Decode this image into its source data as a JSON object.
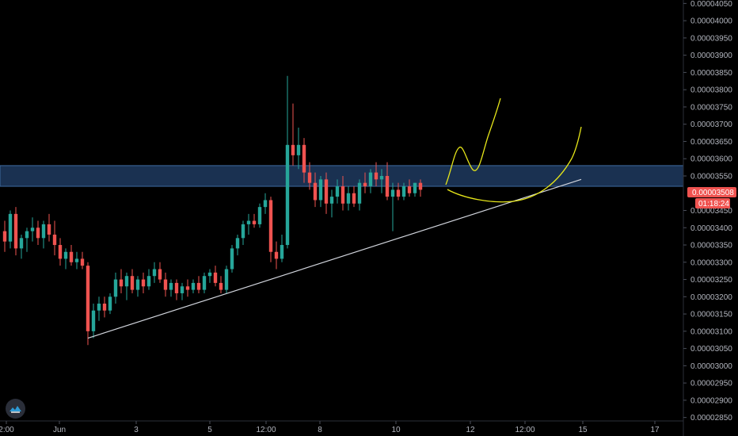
{
  "chart_data": {
    "type": "candlestick",
    "title": "",
    "xlabel": "",
    "ylabel": "",
    "ylim": [
      2.84e-05,
      4.06e-05
    ],
    "y_ticks": [
      "0.00004050",
      "0.00004000",
      "0.00003950",
      "0.00003900",
      "0.00003850",
      "0.00003800",
      "0.00003750",
      "0.00003700",
      "0.00003650",
      "0.00003600",
      "0.00003550",
      "0.00003450",
      "0.00003400",
      "0.00003350",
      "0.00003300",
      "0.00003250",
      "0.00003200",
      "0.00003150",
      "0.00003100",
      "0.00003050",
      "0.00003000",
      "0.00002950",
      "0.00002900",
      "0.00002850"
    ],
    "x_ticks": [
      "2:00",
      "Jun",
      "3",
      "5",
      "12:00",
      "8",
      "10",
      "12",
      "12:00",
      "15",
      "17"
    ],
    "current_price": "0.00003508",
    "countdown": "01:18:24",
    "resistance_zone": [
      3.52e-05,
      3.58e-05
    ],
    "trendline": {
      "start": [
        0,
        3.08e-05
      ],
      "end": [
        1,
        3.54e-05
      ]
    },
    "colors": {
      "up": "#26a69a",
      "down": "#ef5350",
      "zone": "#1e3a5f",
      "drawing": "#e6e619",
      "trendline": "#d1d4dc"
    },
    "series": [
      {
        "o": 3.39e-05,
        "h": 3.42e-05,
        "l": 3.33e-05,
        "c": 3.36e-05
      },
      {
        "o": 3.36e-05,
        "h": 3.45e-05,
        "l": 3.34e-05,
        "c": 3.44e-05
      },
      {
        "o": 3.44e-05,
        "h": 3.46e-05,
        "l": 3.32e-05,
        "c": 3.34e-05
      },
      {
        "o": 3.34e-05,
        "h": 3.38e-05,
        "l": 3.31e-05,
        "c": 3.37e-05
      },
      {
        "o": 3.37e-05,
        "h": 3.4e-05,
        "l": 3.33e-05,
        "c": 3.39e-05
      },
      {
        "o": 3.39e-05,
        "h": 3.43e-05,
        "l": 3.36e-05,
        "c": 3.4e-05
      },
      {
        "o": 3.4e-05,
        "h": 3.42e-05,
        "l": 3.35e-05,
        "c": 3.37e-05
      },
      {
        "o": 3.37e-05,
        "h": 3.42e-05,
        "l": 3.34e-05,
        "c": 3.41e-05
      },
      {
        "o": 3.41e-05,
        "h": 3.44e-05,
        "l": 3.36e-05,
        "c": 3.38e-05
      },
      {
        "o": 3.38e-05,
        "h": 3.42e-05,
        "l": 3.32e-05,
        "c": 3.35e-05
      },
      {
        "o": 3.35e-05,
        "h": 3.37e-05,
        "l": 3.29e-05,
        "c": 3.31e-05
      },
      {
        "o": 3.31e-05,
        "h": 3.34e-05,
        "l": 3.28e-05,
        "c": 3.33e-05
      },
      {
        "o": 3.33e-05,
        "h": 3.35e-05,
        "l": 3.29e-05,
        "c": 3.3e-05
      },
      {
        "o": 3.3e-05,
        "h": 3.33e-05,
        "l": 3.28e-05,
        "c": 3.31e-05
      },
      {
        "o": 3.31e-05,
        "h": 3.33e-05,
        "l": 3.28e-05,
        "c": 3.29e-05
      },
      {
        "o": 3.29e-05,
        "h": 3.3e-05,
        "l": 3.06e-05,
        "c": 3.1e-05
      },
      {
        "o": 3.1e-05,
        "h": 3.18e-05,
        "l": 3.08e-05,
        "c": 3.16e-05
      },
      {
        "o": 3.16e-05,
        "h": 3.2e-05,
        "l": 3.13e-05,
        "c": 3.18e-05
      },
      {
        "o": 3.18e-05,
        "h": 3.2e-05,
        "l": 3.14e-05,
        "c": 3.16e-05
      },
      {
        "o": 3.16e-05,
        "h": 3.21e-05,
        "l": 3.15e-05,
        "c": 3.2e-05
      },
      {
        "o": 3.2e-05,
        "h": 3.27e-05,
        "l": 3.18e-05,
        "c": 3.25e-05
      },
      {
        "o": 3.25e-05,
        "h": 3.28e-05,
        "l": 3.21e-05,
        "c": 3.23e-05
      },
      {
        "o": 3.23e-05,
        "h": 3.27e-05,
        "l": 3.19e-05,
        "c": 3.26e-05
      },
      {
        "o": 3.26e-05,
        "h": 3.28e-05,
        "l": 3.21e-05,
        "c": 3.22e-05
      },
      {
        "o": 3.22e-05,
        "h": 3.26e-05,
        "l": 3.2e-05,
        "c": 3.25e-05
      },
      {
        "o": 3.25e-05,
        "h": 3.27e-05,
        "l": 3.21e-05,
        "c": 3.23e-05
      },
      {
        "o": 3.23e-05,
        "h": 3.28e-05,
        "l": 3.22e-05,
        "c": 3.26e-05
      },
      {
        "o": 3.26e-05,
        "h": 3.3e-05,
        "l": 3.24e-05,
        "c": 3.28e-05
      },
      {
        "o": 3.28e-05,
        "h": 3.3e-05,
        "l": 3.24e-05,
        "c": 3.25e-05
      },
      {
        "o": 3.25e-05,
        "h": 3.27e-05,
        "l": 3.2e-05,
        "c": 3.22e-05
      },
      {
        "o": 3.22e-05,
        "h": 3.25e-05,
        "l": 3.2e-05,
        "c": 3.24e-05
      },
      {
        "o": 3.24e-05,
        "h": 3.25e-05,
        "l": 3.19e-05,
        "c": 3.21e-05
      },
      {
        "o": 3.21e-05,
        "h": 3.24e-05,
        "l": 3.19e-05,
        "c": 3.23e-05
      },
      {
        "o": 3.23e-05,
        "h": 3.25e-05,
        "l": 3.2e-05,
        "c": 3.22e-05
      },
      {
        "o": 3.22e-05,
        "h": 3.25e-05,
        "l": 3.21e-05,
        "c": 3.24e-05
      },
      {
        "o": 3.24e-05,
        "h": 3.26e-05,
        "l": 3.21e-05,
        "c": 3.22e-05
      },
      {
        "o": 3.22e-05,
        "h": 3.27e-05,
        "l": 3.21e-05,
        "c": 3.26e-05
      },
      {
        "o": 3.26e-05,
        "h": 3.28e-05,
        "l": 3.24e-05,
        "c": 3.27e-05
      },
      {
        "o": 3.27e-05,
        "h": 3.29e-05,
        "l": 3.23e-05,
        "c": 3.24e-05
      },
      {
        "o": 3.24e-05,
        "h": 3.26e-05,
        "l": 3.21e-05,
        "c": 3.22e-05
      },
      {
        "o": 3.22e-05,
        "h": 3.29e-05,
        "l": 3.21e-05,
        "c": 3.28e-05
      },
      {
        "o": 3.28e-05,
        "h": 3.35e-05,
        "l": 3.27e-05,
        "c": 3.34e-05
      },
      {
        "o": 3.34e-05,
        "h": 3.38e-05,
        "l": 3.32e-05,
        "c": 3.37e-05
      },
      {
        "o": 3.37e-05,
        "h": 3.42e-05,
        "l": 3.35e-05,
        "c": 3.41e-05
      },
      {
        "o": 3.41e-05,
        "h": 3.44e-05,
        "l": 3.38e-05,
        "c": 3.42e-05
      },
      {
        "o": 3.42e-05,
        "h": 3.44e-05,
        "l": 3.4e-05,
        "c": 3.41e-05
      },
      {
        "o": 3.41e-05,
        "h": 3.47e-05,
        "l": 3.4e-05,
        "c": 3.46e-05
      },
      {
        "o": 3.46e-05,
        "h": 3.5e-05,
        "l": 3.44e-05,
        "c": 3.48e-05
      },
      {
        "o": 3.48e-05,
        "h": 3.49e-05,
        "l": 3.3e-05,
        "c": 3.33e-05
      },
      {
        "o": 3.33e-05,
        "h": 3.36e-05,
        "l": 3.28e-05,
        "c": 3.31e-05
      },
      {
        "o": 3.31e-05,
        "h": 3.38e-05,
        "l": 3.3e-05,
        "c": 3.35e-05
      },
      {
        "o": 3.35e-05,
        "h": 3.84e-05,
        "l": 3.34e-05,
        "c": 3.64e-05
      },
      {
        "o": 3.64e-05,
        "h": 3.76e-05,
        "l": 3.58e-05,
        "c": 3.61e-05
      },
      {
        "o": 3.61e-05,
        "h": 3.69e-05,
        "l": 3.57e-05,
        "c": 3.64e-05
      },
      {
        "o": 3.64e-05,
        "h": 3.66e-05,
        "l": 3.53e-05,
        "c": 3.56e-05
      },
      {
        "o": 3.56e-05,
        "h": 3.59e-05,
        "l": 3.51e-05,
        "c": 3.53e-05
      },
      {
        "o": 3.53e-05,
        "h": 3.56e-05,
        "l": 3.46e-05,
        "c": 3.48e-05
      },
      {
        "o": 3.48e-05,
        "h": 3.55e-05,
        "l": 3.46e-05,
        "c": 3.54e-05
      },
      {
        "o": 3.54e-05,
        "h": 3.56e-05,
        "l": 3.44e-05,
        "c": 3.47e-05
      },
      {
        "o": 3.47e-05,
        "h": 3.51e-05,
        "l": 3.43e-05,
        "c": 3.49e-05
      },
      {
        "o": 3.49e-05,
        "h": 3.54e-05,
        "l": 3.47e-05,
        "c": 3.52e-05
      },
      {
        "o": 3.52e-05,
        "h": 3.55e-05,
        "l": 3.45e-05,
        "c": 3.47e-05
      },
      {
        "o": 3.47e-05,
        "h": 3.52e-05,
        "l": 3.45e-05,
        "c": 3.5e-05
      },
      {
        "o": 3.5e-05,
        "h": 3.52e-05,
        "l": 3.46e-05,
        "c": 3.47e-05
      },
      {
        "o": 3.47e-05,
        "h": 3.54e-05,
        "l": 3.45e-05,
        "c": 3.53e-05
      },
      {
        "o": 3.53e-05,
        "h": 3.56e-05,
        "l": 3.5e-05,
        "c": 3.52e-05
      },
      {
        "o": 3.52e-05,
        "h": 3.57e-05,
        "l": 3.5e-05,
        "c": 3.56e-05
      },
      {
        "o": 3.56e-05,
        "h": 3.59e-05,
        "l": 3.52e-05,
        "c": 3.54e-05
      },
      {
        "o": 3.54e-05,
        "h": 3.57e-05,
        "l": 3.5e-05,
        "c": 3.55e-05
      },
      {
        "o": 3.55e-05,
        "h": 3.59e-05,
        "l": 3.48e-05,
        "c": 3.49e-05
      },
      {
        "o": 3.49e-05,
        "h": 3.53e-05,
        "l": 3.39e-05,
        "c": 3.51e-05
      },
      {
        "o": 3.51e-05,
        "h": 3.53e-05,
        "l": 3.48e-05,
        "c": 3.49e-05
      },
      {
        "o": 3.49e-05,
        "h": 3.53e-05,
        "l": 3.48e-05,
        "c": 3.52e-05
      },
      {
        "o": 3.52e-05,
        "h": 3.54e-05,
        "l": 3.49e-05,
        "c": 3.5e-05
      },
      {
        "o": 3.5e-05,
        "h": 3.53e-05,
        "l": 3.49e-05,
        "c": 3.53e-05
      },
      {
        "o": 3.53e-05,
        "h": 3.54e-05,
        "l": 3.49e-05,
        "c": 3.51e-05
      }
    ]
  }
}
